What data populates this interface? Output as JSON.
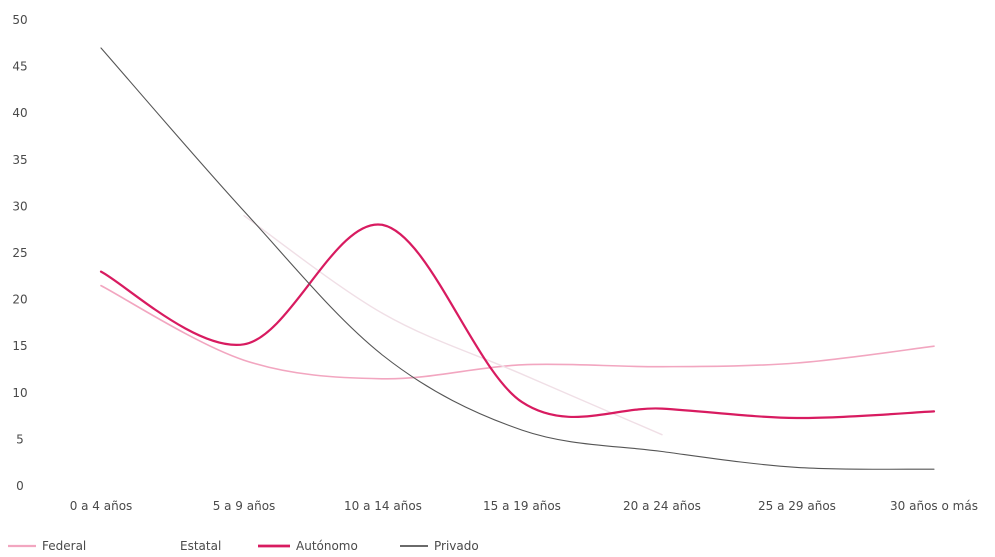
{
  "chart_data": {
    "type": "line",
    "title": "",
    "xlabel": "",
    "ylabel": "",
    "categories": [
      "0 a 4 años",
      "5 a 9 años",
      "10 a 14 años",
      "15 a 19 años",
      "20 a 24 años",
      "25 a 29 años",
      "30 años o más"
    ],
    "ylim": [
      0,
      50
    ],
    "yticks": [
      "0",
      "5",
      "10",
      "15",
      "20",
      "25",
      "30",
      "35",
      "40",
      "45",
      "50"
    ],
    "grid": false,
    "legend_position": "bottom-left",
    "series": [
      {
        "name": "Federal",
        "color": "#f2a6c0",
        "values": [
          21.5,
          13.5,
          11.5,
          13,
          12.8,
          13.2,
          15
        ]
      },
      {
        "name": "Estatal",
        "color": "#f0dfe6",
        "values": [
          null,
          29,
          18.5,
          12,
          5.5,
          null,
          null
        ]
      },
      {
        "name": "Autónomo",
        "color": "#d81b60",
        "values": [
          23,
          15.2,
          28,
          9,
          8.3,
          7.3,
          8
        ]
      },
      {
        "name": "Privado",
        "color": "#555555",
        "values": [
          47,
          29.5,
          14,
          6,
          3.7,
          2,
          1.8
        ]
      }
    ]
  }
}
